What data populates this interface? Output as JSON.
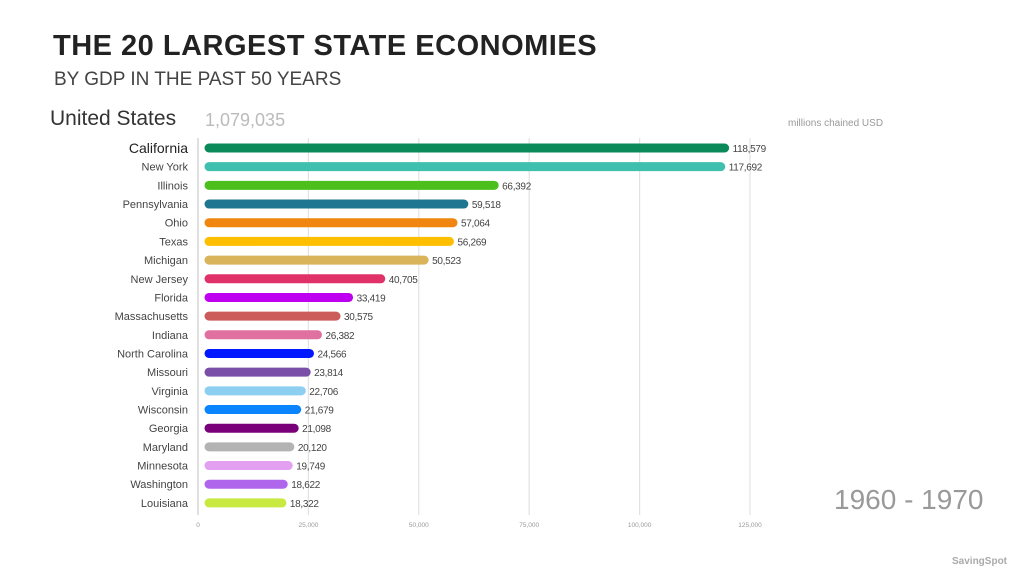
{
  "header": {
    "title": "THE 20 LARGEST STATE ECONOMIES",
    "subtitle": "BY GDP IN THE PAST 50 YEARS",
    "total_label": "United States",
    "total_value": "1,079,035",
    "units": "millions chained USD",
    "period": "1960 - 1970",
    "brand": "SavingSpot"
  },
  "chart_data": {
    "type": "bar",
    "orientation": "horizontal",
    "title": "THE 20 LARGEST STATE ECONOMIES",
    "subtitle": "BY GDP IN THE PAST 50 YEARS",
    "xlabel": "millions chained USD",
    "xlim": [
      0,
      125000
    ],
    "xticks": [
      0,
      25000,
      50000,
      75000,
      100000,
      125000
    ],
    "xtick_labels": [
      "0",
      "25,000",
      "50,000",
      "75,000",
      "100,000",
      "125,000"
    ],
    "grid": true,
    "categories": [
      "California",
      "New York",
      "Illinois",
      "Pennsylvania",
      "Ohio",
      "Texas",
      "Michigan",
      "New Jersey",
      "Florida",
      "Massachusetts",
      "Indiana",
      "North Carolina",
      "Missouri",
      "Virginia",
      "Wisconsin",
      "Georgia",
      "Maryland",
      "Minnesota",
      "Washington",
      "Louisiana"
    ],
    "values": [
      118579,
      117692,
      66392,
      59518,
      57064,
      56269,
      50523,
      40705,
      33419,
      30575,
      26382,
      24566,
      23814,
      22706,
      21679,
      21098,
      20120,
      19749,
      18622,
      18322
    ],
    "value_labels": [
      "118,579",
      "117,692",
      "66,392",
      "59,518",
      "57,064",
      "56,269",
      "50,523",
      "40,705",
      "33,419",
      "30,575",
      "26,382",
      "24,566",
      "23,814",
      "22,706",
      "21,679",
      "21,098",
      "20,120",
      "19,749",
      "18,622",
      "18,322"
    ],
    "colors": [
      "#0a8a5a",
      "#3fbfad",
      "#4cbf1d",
      "#1f7690",
      "#f0860f",
      "#ffbf00",
      "#d9b45a",
      "#e03268",
      "#bf00f0",
      "#cc5c5c",
      "#e070a0",
      "#0018ff",
      "#7a4fa8",
      "#8ccff0",
      "#0a84ff",
      "#7a007a",
      "#b3b3b3",
      "#e4a0f0",
      "#b066ec",
      "#c8ea40"
    ]
  }
}
